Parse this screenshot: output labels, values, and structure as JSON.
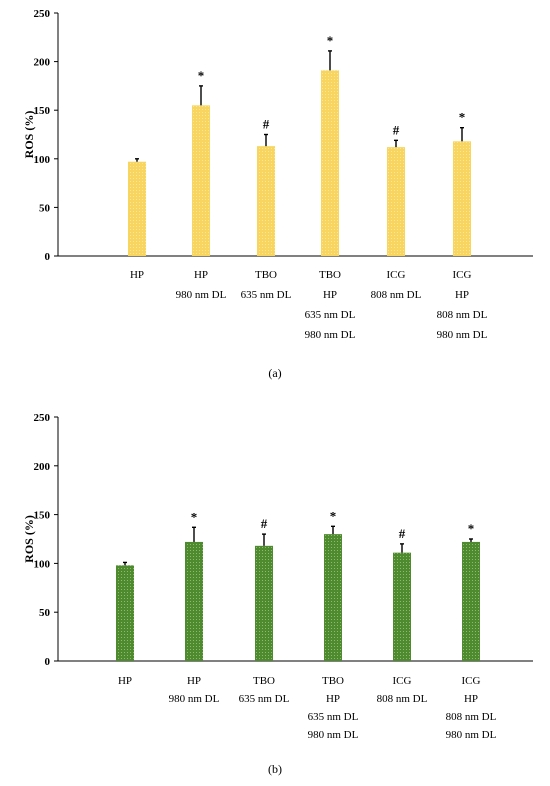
{
  "chart_data": [
    {
      "type": "bar",
      "panel_label": "(a)",
      "ylabel": "ROS (%)",
      "ylim": [
        0,
        250
      ],
      "yticks": [
        0,
        50,
        100,
        150,
        200,
        250
      ],
      "grid": false,
      "bar_color": "#F7D55E",
      "categories": [
        [
          "HP"
        ],
        [
          "HP",
          "980 nm DL"
        ],
        [
          "TBO",
          "635 nm DL"
        ],
        [
          "TBO",
          "HP",
          "635 nm DL",
          "980 nm DL"
        ],
        [
          "ICG",
          "808 nm DL"
        ],
        [
          "ICG",
          "HP",
          "808 nm DL",
          "980 nm DL"
        ]
      ],
      "values": [
        97,
        155,
        113,
        191,
        112,
        118
      ],
      "errors": [
        3,
        20,
        12,
        20,
        7,
        14
      ],
      "annotations": [
        "",
        "*",
        "#",
        "*",
        "#",
        "*"
      ]
    },
    {
      "type": "bar",
      "panel_label": "(b)",
      "ylabel": "ROS (%)",
      "ylim": [
        0,
        250
      ],
      "yticks": [
        0,
        50,
        100,
        150,
        200,
        250
      ],
      "grid": false,
      "bar_color": "#5E9C3B",
      "categories": [
        [
          "HP"
        ],
        [
          "HP",
          "980 nm DL"
        ],
        [
          "TBO",
          "635 nm DL"
        ],
        [
          "TBO",
          "HP",
          "635 nm DL",
          "980 nm DL"
        ],
        [
          "ICG",
          "808 nm DL"
        ],
        [
          "ICG",
          "HP",
          "808 nm DL",
          "980 nm DL"
        ]
      ],
      "values": [
        98,
        122,
        118,
        130,
        111,
        122
      ],
      "errors": [
        3,
        15,
        12,
        8,
        9,
        3
      ],
      "annotations": [
        "",
        "*",
        "#",
        "*",
        "#",
        "*"
      ]
    }
  ]
}
